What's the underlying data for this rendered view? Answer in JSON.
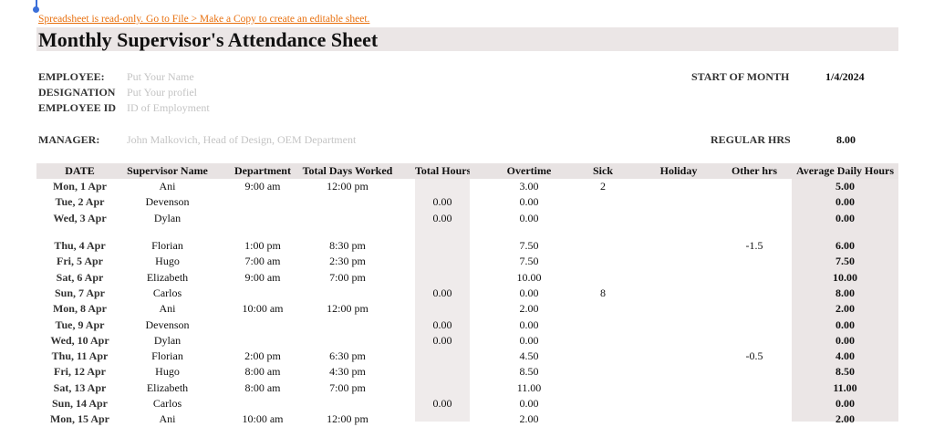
{
  "notice": "Spreadsheet is read-only. Go to File > Make a Copy to create an editable sheet.",
  "header": {
    "title": "Monthly Supervisor's Attendance Sheet"
  },
  "info": {
    "employee": {
      "label": "EMPLOYEE:",
      "value": "Put Your Name"
    },
    "designation": {
      "label": "DESIGNATION",
      "value": "Put Your profiel"
    },
    "employee_id": {
      "label": "EMPLOYEE ID",
      "value": "ID of Employment"
    },
    "manager": {
      "label": "MANAGER:",
      "value": "John Malkovich, Head of Design, OEM Department"
    },
    "start_of_month": {
      "label": "START OF MONTH",
      "value": "1/4/2024"
    },
    "regular_hrs": {
      "label": "REGULAR HRS",
      "value": "8.00"
    }
  },
  "table": {
    "columns": [
      "DATE",
      "Supervisor Name",
      "Department",
      "Total Days Worked",
      "Total Hours",
      "Overtime",
      "Sick",
      "Holiday",
      "Other hrs",
      "Average Daily Hours"
    ],
    "rows": [
      [
        "Mon, 1 Apr",
        "Ani",
        "9:00 am",
        "12:00 pm",
        null,
        "3.00",
        "2",
        null,
        null,
        "5.00"
      ],
      [
        "Tue, 2 Apr",
        "Devenson",
        null,
        null,
        "0.00",
        "0.00",
        null,
        null,
        null,
        "0.00"
      ],
      [
        "Wed, 3 Apr",
        "Dylan",
        null,
        null,
        "0.00",
        "0.00",
        null,
        null,
        null,
        "0.00"
      ],
      [
        "Thu, 4 Apr",
        "Florian",
        "1:00 pm",
        "8:30 pm",
        null,
        "7.50",
        null,
        null,
        "-1.5",
        "6.00"
      ],
      [
        "Fri, 5 Apr",
        "Hugo",
        "7:00 am",
        "2:30 pm",
        null,
        "7.50",
        null,
        null,
        null,
        "7.50"
      ],
      [
        "Sat, 6 Apr",
        "Elizabeth",
        "9:00 am",
        "7:00 pm",
        null,
        "10.00",
        null,
        null,
        null,
        "10.00"
      ],
      [
        "Sun, 7 Apr",
        "Carlos",
        null,
        null,
        "0.00",
        "0.00",
        "8",
        null,
        null,
        "8.00"
      ],
      [
        "Mon, 8 Apr",
        "Ani",
        "10:00 am",
        "12:00 pm",
        null,
        "2.00",
        null,
        null,
        null,
        "2.00"
      ],
      [
        "Tue, 9 Apr",
        "Devenson",
        null,
        null,
        "0.00",
        "0.00",
        null,
        null,
        null,
        "0.00"
      ],
      [
        "Wed, 10 Apr",
        "Dylan",
        null,
        null,
        "0.00",
        "0.00",
        null,
        null,
        null,
        "0.00"
      ],
      [
        "Thu, 11 Apr",
        "Florian",
        "2:00 pm",
        "6:30 pm",
        null,
        "4.50",
        null,
        null,
        "-0.5",
        "4.00"
      ],
      [
        "Fri, 12 Apr",
        "Hugo",
        "8:00 am",
        "4:30 pm",
        null,
        "8.50",
        null,
        null,
        null,
        "8.50"
      ],
      [
        "Sat, 13 Apr",
        "Elizabeth",
        "8:00 am",
        "7:00 pm",
        null,
        "11.00",
        null,
        null,
        null,
        "11.00"
      ],
      [
        "Sun, 14 Apr",
        "Carlos",
        null,
        null,
        "0.00",
        "0.00",
        null,
        null,
        null,
        "0.00"
      ],
      [
        "Mon, 15 Apr",
        "Ani",
        "10:00 am",
        "12:00 pm",
        null,
        "2.00",
        null,
        null,
        null,
        "2.00"
      ]
    ]
  }
}
